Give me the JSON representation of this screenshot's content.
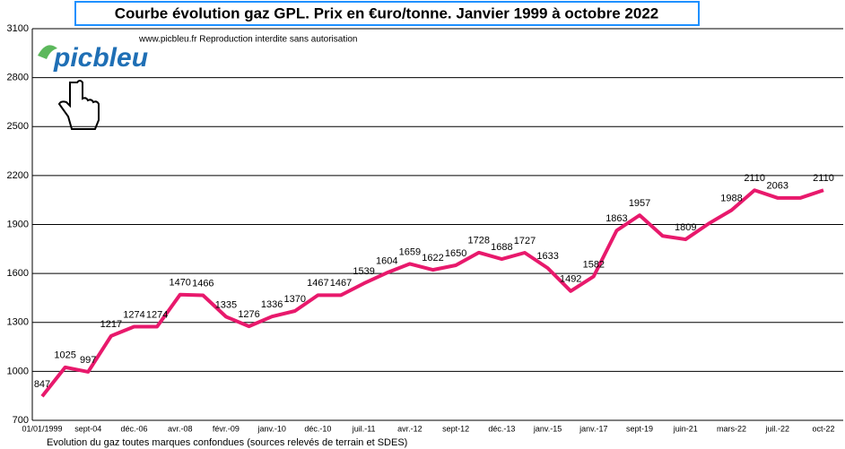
{
  "chart_data": {
    "type": "line",
    "title": "Courbe évolution gaz GPL. Prix en €uro/tonne. Janvier 1999 à octobre 2022",
    "subtitle": "www.picbleu.fr   Reproduction interdite sans autorisation",
    "logo": "picbleu",
    "footnote": "Evolution du gaz toutes marques confondues (sources relevés de terrain et SDES)",
    "categories": [
      "01/01/1999",
      null,
      "sept-04",
      null,
      "déc.-06",
      null,
      "avr.-08",
      null,
      "févr.-09",
      null,
      "janv.-10",
      null,
      "déc.-10",
      null,
      "juil.-11",
      null,
      "avr.-12",
      null,
      "sept-12",
      null,
      "déc.-13",
      null,
      "janv.-15",
      null,
      "janv.-17",
      null,
      "sept-19",
      null,
      "juin-21",
      null,
      "mars-22",
      null,
      "juil.-22",
      null,
      "oct-22"
    ],
    "series": [
      {
        "name": "GPL",
        "color": "#e8196c",
        "values": [
          847,
          1025,
          997,
          1217,
          1274,
          1274,
          1470,
          1466,
          1335,
          1276,
          1336,
          1370,
          1467,
          1467,
          1539,
          1604,
          1659,
          1622,
          1650,
          1728,
          1688,
          1727,
          1633,
          1492,
          1582,
          1863,
          1957,
          1830,
          1809,
          1905,
          1988,
          2110,
          2063,
          2063,
          2110
        ],
        "value_labels": [
          "847",
          "1025",
          "997",
          "1217",
          "1274",
          "1274",
          "1470",
          "1466",
          "1335",
          "1276",
          "1336",
          "1370",
          "1467",
          "1467",
          "1539",
          "1604",
          "1659",
          "1622",
          "1650",
          "1728",
          "1688",
          "1727",
          "1633",
          "1492",
          "1582",
          "1863",
          "1957",
          null,
          "1809",
          null,
          "1988",
          "2110",
          "2063",
          null,
          "2110"
        ]
      }
    ],
    "ylim": [
      700,
      3100
    ],
    "yticks": [
      700,
      1000,
      1300,
      1600,
      1900,
      2200,
      2500,
      2800,
      3100
    ],
    "grid": true
  }
}
